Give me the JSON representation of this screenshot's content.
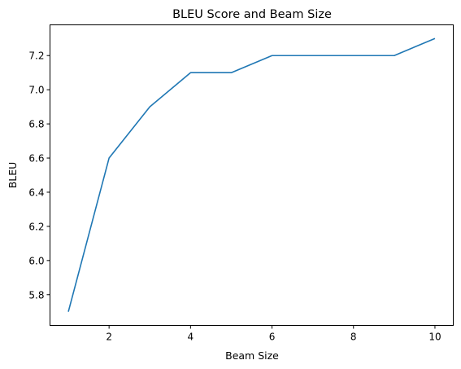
{
  "chart_data": {
    "type": "line",
    "title": "BLEU Score and Beam Size",
    "xlabel": "Beam Size",
    "ylabel": "BLEU",
    "xlim": [
      0.55,
      10.45
    ],
    "ylim": [
      5.62,
      7.38
    ],
    "xticks": [
      2,
      4,
      6,
      8,
      10
    ],
    "xtick_labels": [
      "2",
      "4",
      "6",
      "8",
      "10"
    ],
    "yticks": [
      5.8,
      6.0,
      6.2,
      6.4,
      6.6,
      6.8,
      7.0,
      7.2
    ],
    "ytick_labels": [
      "5.8",
      "6.0",
      "6.2",
      "6.4",
      "6.6",
      "6.8",
      "7.0",
      "7.2"
    ],
    "grid": false,
    "series": [
      {
        "color": "#1f77b4",
        "x": [
          1,
          2,
          3,
          4,
          5,
          6,
          7,
          8,
          9,
          10
        ],
        "values": [
          5.7,
          6.6,
          6.9,
          7.1,
          7.1,
          7.2,
          7.2,
          7.2,
          7.2,
          7.3
        ]
      }
    ]
  }
}
